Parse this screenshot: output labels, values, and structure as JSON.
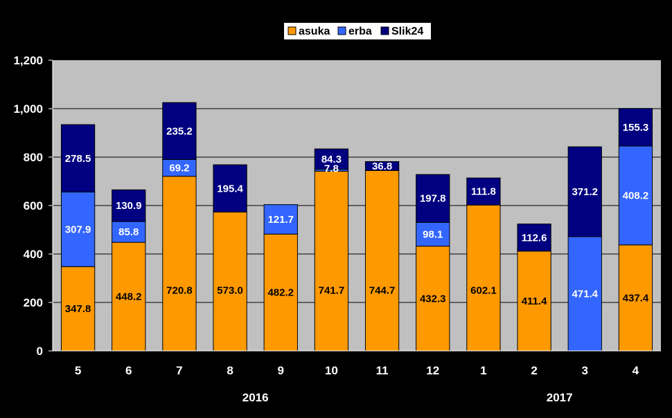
{
  "chart_data": {
    "type": "bar",
    "stacked": true,
    "categories": [
      "5",
      "6",
      "7",
      "8",
      "9",
      "10",
      "11",
      "12",
      "1",
      "2",
      "3",
      "4"
    ],
    "year_labels": [
      {
        "text": "2016",
        "span": [
          0,
          7
        ]
      },
      {
        "text": "2017",
        "span": [
          8,
          11
        ]
      }
    ],
    "series": [
      {
        "name": "asuka",
        "color": "#ff9900",
        "label_color": "#000000",
        "values": [
          347.8,
          448.2,
          720.8,
          573.0,
          482.2,
          741.7,
          744.7,
          432.3,
          602.1,
          411.4,
          0,
          437.4
        ],
        "labels": [
          "347.8",
          "448.2",
          "720.8",
          "573.0",
          "482.2",
          "741.7",
          "744.7",
          "432.3",
          "602.1",
          "411.4",
          "",
          "437.4"
        ]
      },
      {
        "name": "erba",
        "color": "#3366ff",
        "label_color": "#ffffff",
        "values": [
          307.9,
          85.8,
          69.2,
          0,
          121.7,
          7.8,
          0,
          98.1,
          0,
          0,
          471.4,
          408.2
        ],
        "labels": [
          "307.9",
          "85.8",
          "69.2",
          "",
          "121.7",
          "7.8",
          "",
          "98.1",
          "",
          "",
          "471.4",
          "408.2"
        ]
      },
      {
        "name": "Slik24",
        "color": "#000080",
        "label_color": "#ffffff",
        "values": [
          278.5,
          130.9,
          235.2,
          195.4,
          0,
          84.3,
          36.8,
          197.8,
          111.8,
          112.6,
          371.2,
          155.3
        ],
        "labels": [
          "278.5",
          "130.9",
          "235.2",
          "195.4",
          "",
          "84.3",
          "36.8",
          "197.8",
          "111.8",
          "112.6",
          "371.2",
          "155.3"
        ]
      }
    ],
    "ylim": [
      0,
      1200
    ],
    "yticks": [
      0,
      200,
      400,
      600,
      800,
      1000,
      1200
    ],
    "ytick_labels": [
      "0",
      "200",
      "400",
      "600",
      "800",
      "1,000",
      "1,200"
    ],
    "grid": true,
    "legend_position": "top-center",
    "title": "",
    "xlabel": "",
    "ylabel": ""
  }
}
